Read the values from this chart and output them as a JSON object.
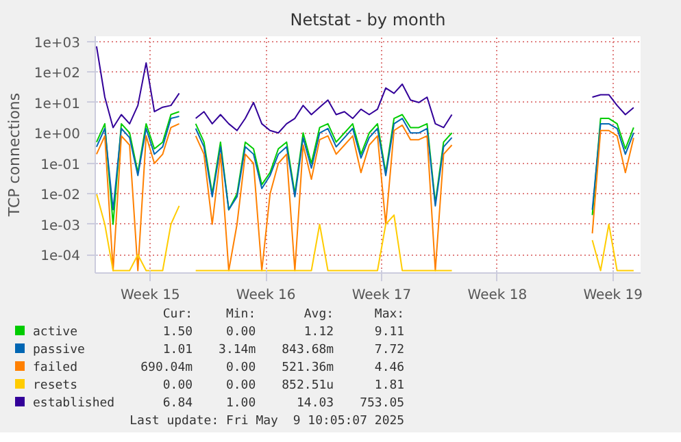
{
  "chart_data": {
    "type": "line",
    "title": "Netstat - by month",
    "ylabel": "TCP connections",
    "log": "y",
    "grid": true,
    "legend": "bottom",
    "x": [
      "2025-04-06T12:00",
      "2025-04-07T00:00",
      "2025-04-07T12:00",
      "2025-04-08T00:00",
      "2025-04-08T12:00",
      "2025-04-09T00:00",
      "2025-04-09T12:00",
      "2025-04-10T00:00",
      "2025-04-10T12:00",
      "2025-04-11T00:00",
      "2025-04-11T12:00",
      "2025-04-12T00:00",
      "2025-04-12T12:00",
      "2025-04-13T00:00",
      "2025-04-13T12:00",
      "2025-04-14T00:00",
      "2025-04-14T12:00",
      "2025-04-15T00:00",
      "2025-04-15T12:00",
      "2025-04-16T00:00",
      "2025-04-16T12:00",
      "2025-04-17T00:00",
      "2025-04-17T12:00",
      "2025-04-18T00:00",
      "2025-04-18T12:00",
      "2025-04-19T00:00",
      "2025-04-19T12:00",
      "2025-04-20T00:00",
      "2025-04-20T12:00",
      "2025-04-21T00:00",
      "2025-04-21T12:00",
      "2025-04-22T00:00",
      "2025-04-22T12:00",
      "2025-04-23T00:00",
      "2025-04-23T12:00",
      "2025-04-24T00:00",
      "2025-04-24T12:00",
      "2025-04-25T00:00",
      "2025-04-25T12:00",
      "2025-04-26T00:00",
      "2025-04-26T12:00",
      "2025-04-27T00:00",
      "2025-04-27T12:00",
      "2025-04-28T00:00",
      "2025-04-28T12:00",
      "2025-04-29T00:00",
      "2025-04-29T12:00",
      "2025-04-30T00:00",
      "2025-04-30T12:00",
      "2025-05-01T00:00",
      "2025-05-01T12:00",
      "2025-05-02T00:00",
      "2025-05-02T12:00",
      "2025-05-03T00:00",
      "2025-05-03T12:00",
      "2025-05-04T00:00",
      "2025-05-04T12:00",
      "2025-05-05T00:00",
      "2025-05-05T12:00",
      "2025-05-06T00:00",
      "2025-05-06T12:00",
      "2025-05-07T00:00",
      "2025-05-07T12:00",
      "2025-05-08T00:00",
      "2025-05-08T12:00",
      "2025-05-09T00:00"
    ],
    "xlim": [
      "2025-04-06T10:05",
      "2025-05-09T10:05"
    ],
    "xticks": [
      {
        "value": "2025-04-09T18:00",
        "label": "Week 15"
      },
      {
        "value": "2025-04-16T18:00",
        "label": "Week 16"
      },
      {
        "value": "2025-04-23T18:00",
        "label": "Week 17"
      },
      {
        "value": "2025-04-30T18:00",
        "label": "Week 18"
      },
      {
        "value": "2025-05-07T18:00",
        "label": "Week 19"
      }
    ],
    "ylim": [
      2.5e-05,
      1500
    ],
    "yticks": [
      {
        "value": 0.0001,
        "label": "1e-04"
      },
      {
        "value": 0.001,
        "label": "1e-03"
      },
      {
        "value": 0.01,
        "label": "1e-02"
      },
      {
        "value": 0.1,
        "label": "1e-01"
      },
      {
        "value": 1,
        "label": "1e+00"
      },
      {
        "value": 10,
        "label": "1e+01"
      },
      {
        "value": 100,
        "label": "1e+02"
      },
      {
        "value": 1000,
        "label": "1e+03"
      }
    ],
    "series": [
      {
        "name": "active",
        "color": "#00cc00",
        "values": [
          0.5,
          2,
          0.001,
          2,
          1,
          0.05,
          2,
          0.3,
          0.5,
          4,
          5,
          null,
          2,
          0.5,
          0.01,
          0.5,
          0.003,
          0.01,
          0.5,
          0.3,
          0.02,
          0.05,
          0.3,
          0.5,
          0.01,
          1,
          0.1,
          1.5,
          2,
          0.5,
          1,
          2,
          0.2,
          1,
          2,
          0.05,
          3,
          4,
          1.5,
          1.5,
          2,
          0.005,
          0.5,
          1,
          null,
          null,
          null,
          null,
          null,
          null,
          null,
          null,
          null,
          null,
          null,
          null,
          null,
          null,
          null,
          null,
          0.002,
          3,
          3,
          2,
          0.3,
          1.5
        ]
      },
      {
        "name": "passive",
        "color": "#0066b3",
        "values": [
          0.35,
          1.4,
          0.003,
          1.4,
          0.7,
          0.04,
          1.4,
          0.2,
          0.35,
          3,
          3.5,
          null,
          1.4,
          0.35,
          0.008,
          0.35,
          0.003,
          0.008,
          0.35,
          0.2,
          0.015,
          0.04,
          0.2,
          0.35,
          0.008,
          0.7,
          0.07,
          1,
          1.4,
          0.35,
          0.7,
          1.4,
          0.15,
          0.7,
          1.4,
          0.04,
          2,
          3,
          1,
          1,
          1.4,
          0.004,
          0.35,
          0.7,
          null,
          null,
          null,
          null,
          null,
          null,
          null,
          null,
          null,
          null,
          null,
          null,
          null,
          null,
          null,
          null,
          0.003,
          2,
          2,
          1.4,
          0.2,
          1.01
        ]
      },
      {
        "name": "failed",
        "color": "#ff8000",
        "values": [
          0.2,
          0.8,
          3e-05,
          0.8,
          0.4,
          3e-05,
          0.8,
          0.1,
          0.2,
          1.5,
          2,
          null,
          0.8,
          0.2,
          0.001,
          0.2,
          3e-05,
          0.001,
          0.2,
          0.1,
          3e-05,
          0.01,
          0.1,
          0.2,
          3e-05,
          0.4,
          0.03,
          0.6,
          0.8,
          0.2,
          0.4,
          0.8,
          0.05,
          0.4,
          0.8,
          0.001,
          1.2,
          1.8,
          0.6,
          0.6,
          0.8,
          3e-05,
          0.2,
          0.4,
          null,
          null,
          null,
          null,
          null,
          null,
          null,
          null,
          null,
          null,
          null,
          null,
          null,
          null,
          null,
          null,
          0.0005,
          1.2,
          1.2,
          0.8,
          0.05,
          0.69
        ]
      },
      {
        "name": "resets",
        "color": "#ffcc00",
        "values": [
          0.01,
          0.001,
          3e-05,
          3e-05,
          3e-05,
          0.0001,
          3e-05,
          3e-05,
          3e-05,
          0.001,
          0.004,
          null,
          3e-05,
          3e-05,
          3e-05,
          3e-05,
          3e-05,
          3e-05,
          3e-05,
          3e-05,
          3e-05,
          3e-05,
          3e-05,
          3e-05,
          3e-05,
          3e-05,
          3e-05,
          0.001,
          3e-05,
          3e-05,
          3e-05,
          3e-05,
          3e-05,
          3e-05,
          3e-05,
          0.001,
          0.002,
          3e-05,
          3e-05,
          3e-05,
          3e-05,
          3e-05,
          3e-05,
          3e-05,
          null,
          null,
          null,
          null,
          null,
          null,
          null,
          null,
          null,
          null,
          null,
          null,
          null,
          null,
          null,
          null,
          0.0003,
          3e-05,
          0.001,
          3e-05,
          3e-05,
          3e-05
        ]
      },
      {
        "name": "established",
        "color": "#330099",
        "values": [
          700,
          15,
          1.5,
          4,
          2,
          8,
          200,
          5,
          7,
          8,
          20,
          null,
          3,
          5,
          2,
          4,
          2,
          1.2,
          3,
          10,
          2,
          1.2,
          1,
          2,
          3,
          8,
          4,
          7,
          12,
          4,
          5,
          3,
          6,
          4,
          6,
          30,
          20,
          40,
          12,
          10,
          15,
          2,
          1.5,
          4,
          null,
          null,
          null,
          null,
          null,
          null,
          null,
          null,
          null,
          null,
          null,
          null,
          null,
          null,
          null,
          null,
          15,
          18,
          18,
          8,
          4,
          6.84
        ]
      }
    ],
    "annotations": [
      "Cur:",
      "Min:",
      "Avg:",
      "Max:",
      "1.50",
      "0.00",
      "1.12",
      "9.11",
      "1.01",
      "3.14m",
      "843.68m",
      "7.72",
      "690.04m",
      "0.00",
      "521.36m",
      "4.46",
      "0.00",
      "0.00",
      "852.51u",
      "1.81",
      "6.84",
      "1.00",
      "14.03",
      "753.05",
      "Last update: Fri May  9 10:05:07 2025"
    ]
  }
}
